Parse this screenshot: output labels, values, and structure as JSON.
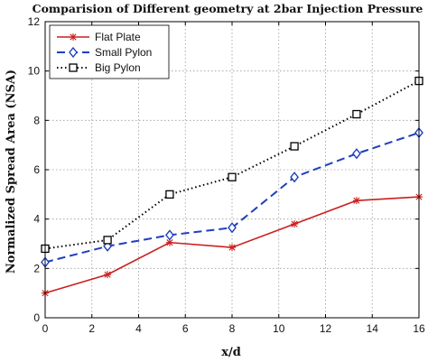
{
  "chart_data": {
    "type": "line",
    "title": "Comparision of Different geometry at 2bar Injection Pressure",
    "xlabel": "x/d",
    "ylabel": "Normalized Spread Area (NSA)",
    "xlim": [
      0,
      16
    ],
    "ylim": [
      0,
      12
    ],
    "x_ticks": [
      0,
      2,
      4,
      6,
      8,
      10,
      12,
      14,
      16
    ],
    "y_ticks": [
      0,
      2,
      4,
      6,
      8,
      10,
      12
    ],
    "grid": true,
    "legend_position": "top-left",
    "series": [
      {
        "name": "Flat Plate",
        "color": "#cc1f1f",
        "line_style": "solid",
        "marker": "star",
        "x": [
          0,
          2.67,
          5.33,
          8,
          10.67,
          13.33,
          16
        ],
        "y": [
          1.0,
          1.75,
          3.05,
          2.85,
          3.8,
          4.75,
          4.9
        ]
      },
      {
        "name": "Small Pylon",
        "color": "#1f3fbf",
        "line_style": "dashed",
        "marker": "diamond",
        "x": [
          0,
          2.67,
          5.33,
          8,
          10.67,
          13.33,
          16
        ],
        "y": [
          2.25,
          2.9,
          3.35,
          3.65,
          5.7,
          6.65,
          7.5
        ]
      },
      {
        "name": "Big Pylon",
        "color": "#000000",
        "line_style": "dotted",
        "marker": "square",
        "x": [
          0,
          2.67,
          5.33,
          8,
          10.67,
          13.33,
          16
        ],
        "y": [
          2.8,
          3.15,
          5.0,
          5.7,
          6.95,
          8.25,
          9.6
        ]
      }
    ]
  }
}
